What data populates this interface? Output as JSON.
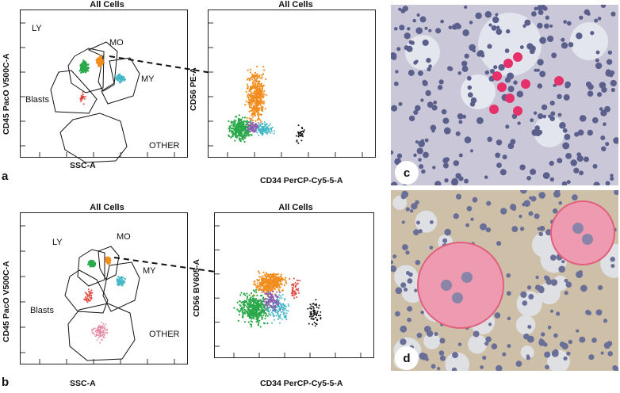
{
  "panels": {
    "top": {
      "letter": "a",
      "gate_plot": {
        "title": "All Cells",
        "xlabel": "SSC-A",
        "ylabel": "CD45 PacO V500C-A",
        "gates": {
          "ly": "LY",
          "mo": "MO",
          "my": "MY",
          "blasts": "Blasts",
          "other": "OTHER"
        }
      },
      "marker_plot": {
        "title": "All Cells",
        "xlabel": "CD34 PerCP-Cy5-5-A",
        "ylabel": "CD56 PE-A"
      }
    },
    "bottom": {
      "letter": "b",
      "gate_plot": {
        "title": "All Cells",
        "xlabel": "SSC-A",
        "ylabel": "CD45 PacO V500C-A",
        "gates": {
          "ly": "LY",
          "mo": "MO",
          "my": "MY",
          "blasts": "Blasts",
          "other": "OTHER"
        }
      },
      "marker_plot": {
        "title": "All Cells",
        "xlabel": "CD34 PerCP-Cy5-5-A",
        "ylabel": "CD56 BV605-A"
      }
    }
  },
  "photos": {
    "c": {
      "letter": "c"
    },
    "d": {
      "letter": "d"
    }
  },
  "colors": {
    "ly": "#2aa84a",
    "mo": "#f28c1c",
    "my": "#45b8c8",
    "blasts": "#e0463c",
    "other_pink": "#e58aa6",
    "purple": "#8a5fb0",
    "black": "#111111",
    "stain_red": "#e5306a",
    "tissue_bg": "#c9c7d8"
  }
}
